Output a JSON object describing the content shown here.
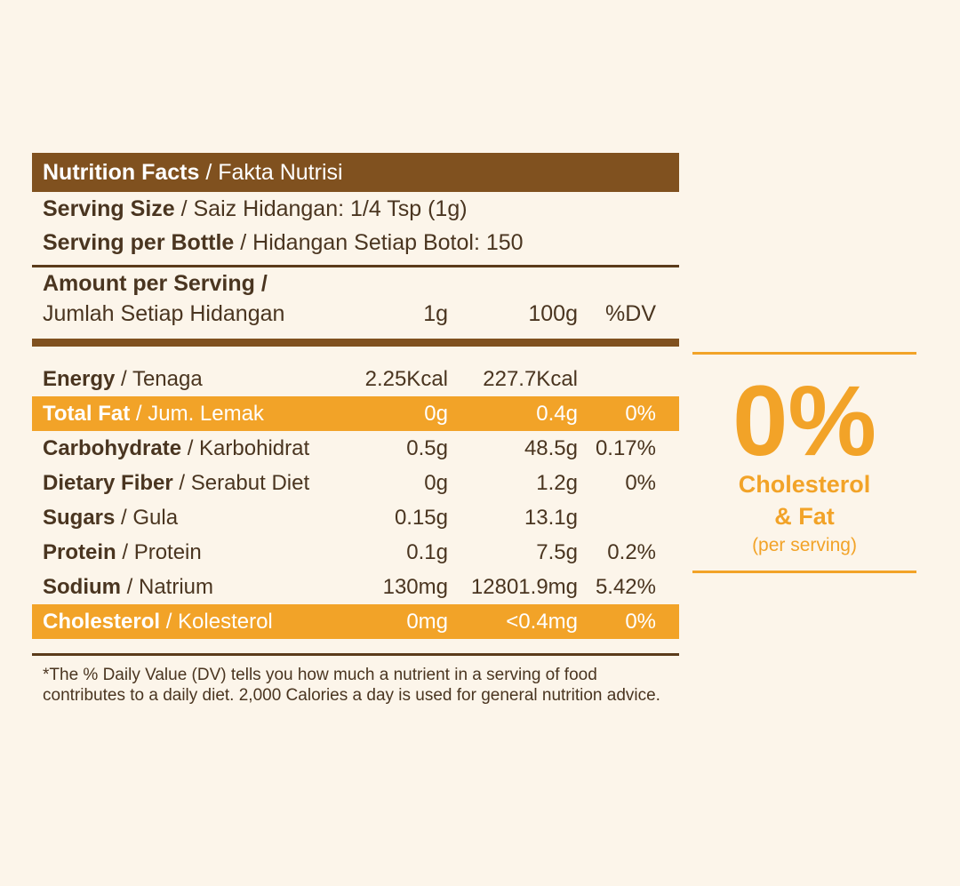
{
  "title": {
    "bold": "Nutrition Facts",
    "thin": " / Fakta Nutrisi"
  },
  "serving_size": {
    "bold": "Serving Size",
    "thin": " / Saiz Hidangan:  1/4 Tsp (1g)"
  },
  "serving_per_bottle": {
    "bold": "Serving per Bottle",
    "thin": " / Hidangan Setiap Botol: 150"
  },
  "amount": {
    "line1": "Amount per Serving /",
    "line2": "Jumlah Setiap Hidangan",
    "col1": "1g",
    "col2": "100g",
    "col3": "%DV"
  },
  "rows": [
    {
      "bold": "Energy",
      "thin": " / Tenaga",
      "c1": "2.25Kcal",
      "c2": "227.7Kcal",
      "c3": ""
    },
    {
      "bold": "Total Fat",
      "thin": " / Jum. Lemak",
      "c1": "0g",
      "c2": "0.4g",
      "c3": "0%"
    },
    {
      "bold": "Carbohydrate",
      "thin": " / Karbohidrat",
      "c1": "0.5g",
      "c2": "48.5g",
      "c3": "0.17%"
    },
    {
      "bold": "Dietary Fiber",
      "thin": " / Serabut Diet",
      "c1": "0g",
      "c2": "1.2g",
      "c3": "0%"
    },
    {
      "bold": "Sugars",
      "thin": " / Gula",
      "c1": "0.15g",
      "c2": "13.1g",
      "c3": ""
    },
    {
      "bold": "Protein",
      "thin": " / Protein",
      "c1": "0.1g",
      "c2": "7.5g",
      "c3": "0.2%"
    },
    {
      "bold": "Sodium",
      "thin": " / Natrium",
      "c1": "130mg",
      "c2": "12801.9mg",
      "c3": "5.42%"
    },
    {
      "bold": "Cholesterol",
      "thin": " / Kolesterol",
      "c1": "0mg",
      "c2": "<0.4mg",
      "c3": "0%"
    }
  ],
  "footnote": "*The % Daily Value (DV) tells you how much a nutrient in a serving of food contributes to a daily diet. 2,000 Calories a day is used for general nutrition advice.",
  "badge": {
    "big": "0%",
    "line1": "Cholesterol",
    "line2": "& Fat",
    "line3": "(per serving)"
  },
  "colors": {
    "brown": "#80511f",
    "orange": "#f2a328",
    "background": "#fcf5ea",
    "text": "#4a3520"
  }
}
